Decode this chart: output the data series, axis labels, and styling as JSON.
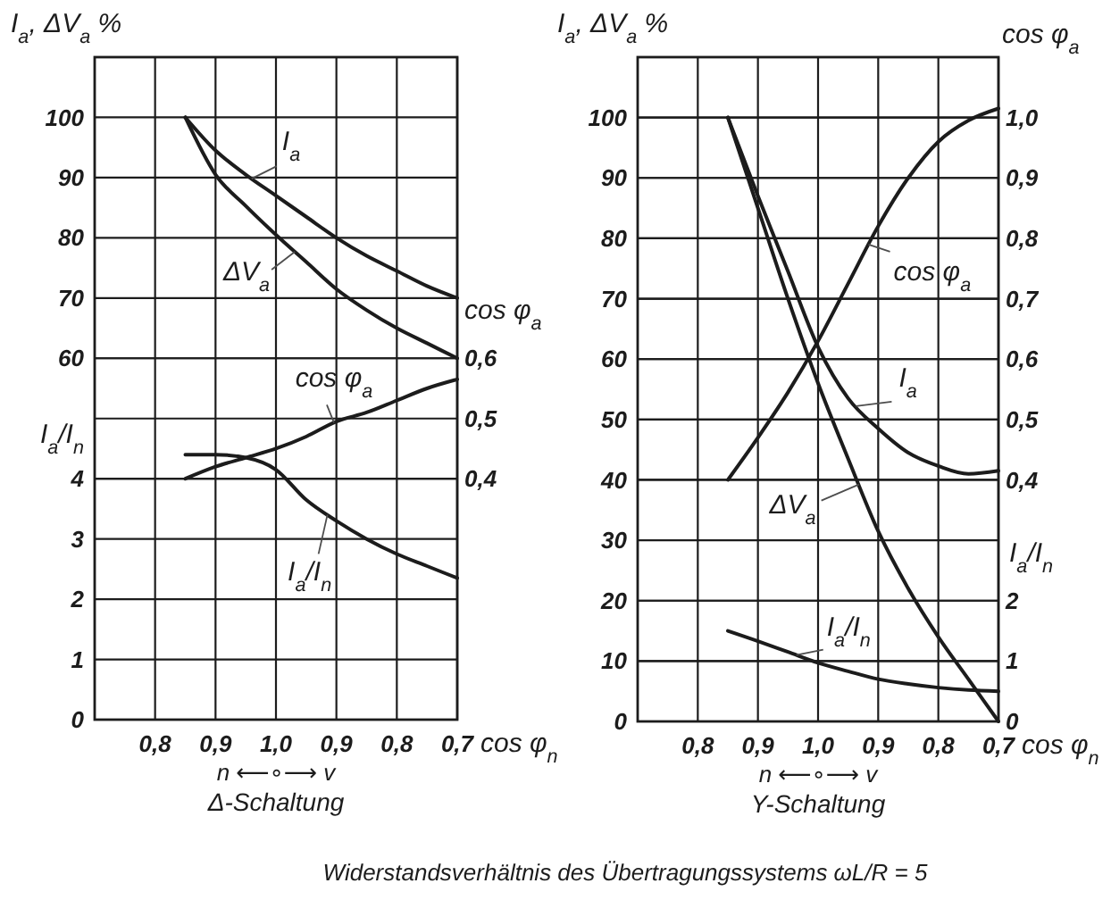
{
  "chart_data": [
    {
      "type": "line",
      "title": "Δ-Schaltung",
      "xlabel": "cos φ$_{n}$",
      "ylabel": "I$_{a}$, ΔV$_{a}$ %",
      "y2label": "cos φ$_{a}$",
      "y3label": "I$_{a}$/I$_{n}$",
      "categories": [
        null,
        null,
        "0,8",
        null,
        "0,9",
        null,
        "1,0",
        null,
        "0,9",
        null,
        "0,8",
        null,
        "0,7"
      ],
      "ylim": [
        0,
        110
      ],
      "yticks": [
        60,
        70,
        80,
        90,
        100
      ],
      "y2lim": [
        0,
        1.1
      ],
      "y2ticks": [
        {
          "value": 0.4,
          "label": "0,4"
        },
        {
          "value": 0.5,
          "label": "0,5"
        },
        {
          "value": 0.6,
          "label": "0,6"
        }
      ],
      "y3lim": [
        0,
        11
      ],
      "y3ticks": [
        0,
        1,
        2,
        3,
        4
      ],
      "grid": true,
      "series": [
        {
          "name": "I$_{a}$",
          "color": "#1c1c1c",
          "values": [
            null,
            null,
            null,
            100,
            94.5,
            90.5,
            87,
            83.5,
            80,
            77,
            74.5,
            72,
            70
          ]
        },
        {
          "name": "ΔV$_{a}$",
          "color": "#1c1c1c",
          "values": [
            null,
            null,
            null,
            100,
            90.5,
            85.3,
            80.5,
            76,
            71.5,
            68,
            65,
            62.5,
            60
          ]
        },
        {
          "name": "cos φ$_{a}$",
          "color": "#1c1c1c",
          "axis": "y2",
          "values": [
            null,
            null,
            null,
            0.4,
            0.42,
            0.435,
            0.45,
            0.47,
            0.495,
            0.51,
            0.53,
            0.55,
            0.565
          ]
        },
        {
          "name": "I$_{a}$/I$_{n}$",
          "color": "#1c1c1c",
          "axis": "y3",
          "values": [
            null,
            null,
            null,
            4.4,
            4.4,
            4.35,
            4.15,
            3.65,
            3.3,
            3.0,
            2.75,
            2.55,
            2.35
          ]
        }
      ],
      "annotations": [
        "n ⟵∘⟶ v"
      ]
    },
    {
      "type": "line",
      "title": "Y-Schaltung",
      "xlabel": "cos φ$_{n}$",
      "ylabel": "I$_{a}$, ΔV$_{a}$ %",
      "y2label": "cos φ$_{a}$",
      "y3label": "I$_{a}$/I$_{n}$",
      "categories": [
        null,
        null,
        "0,8",
        null,
        "0,9",
        null,
        "1,0",
        null,
        "0,9",
        null,
        "0,8",
        null,
        "0,7"
      ],
      "ylim": [
        0,
        110
      ],
      "yticks": [
        0,
        10,
        20,
        30,
        40,
        50,
        60,
        70,
        80,
        90,
        100
      ],
      "y2lim": [
        0,
        1.1
      ],
      "y2ticks": [
        {
          "value": 0.4,
          "label": "0,4"
        },
        {
          "value": 0.5,
          "label": "0,5"
        },
        {
          "value": 0.6,
          "label": "0,6"
        },
        {
          "value": 0.7,
          "label": "0,7"
        },
        {
          "value": 0.8,
          "label": "0,8"
        },
        {
          "value": 0.9,
          "label": "0,9"
        },
        {
          "value": 1.0,
          "label": "1,0"
        }
      ],
      "y3lim": [
        0,
        11
      ],
      "y3ticks": [
        0,
        1,
        2
      ],
      "grid": true,
      "series": [
        {
          "name": "I$_{a}$",
          "color": "#1c1c1c",
          "values": [
            null,
            null,
            null,
            100,
            87,
            74.5,
            62,
            53.5,
            48.5,
            44.5,
            42.3,
            41,
            41.5
          ]
        },
        {
          "name": "ΔV$_{a}$",
          "color": "#1c1c1c",
          "values": [
            null,
            null,
            null,
            100,
            85,
            70,
            56,
            43.5,
            31.5,
            22,
            14,
            7,
            0
          ]
        },
        {
          "name": "cos φ$_{a}$",
          "color": "#1c1c1c",
          "axis": "y2",
          "values": [
            null,
            null,
            null,
            0.4,
            0.47,
            0.545,
            0.63,
            0.725,
            0.82,
            0.9,
            0.96,
            0.995,
            1.015
          ]
        },
        {
          "name": "I$_{a}$/I$_{n}$",
          "color": "#1c1c1c",
          "axis": "y3",
          "values": [
            null,
            null,
            null,
            1.5,
            1.33,
            1.15,
            0.97,
            0.83,
            0.7,
            0.62,
            0.56,
            0.52,
            0.5
          ]
        }
      ],
      "annotations": [
        "n ⟵∘⟶ v",
        "Widerstandsverhältnis des Übertragungssystems ωL/R = 5"
      ]
    }
  ]
}
